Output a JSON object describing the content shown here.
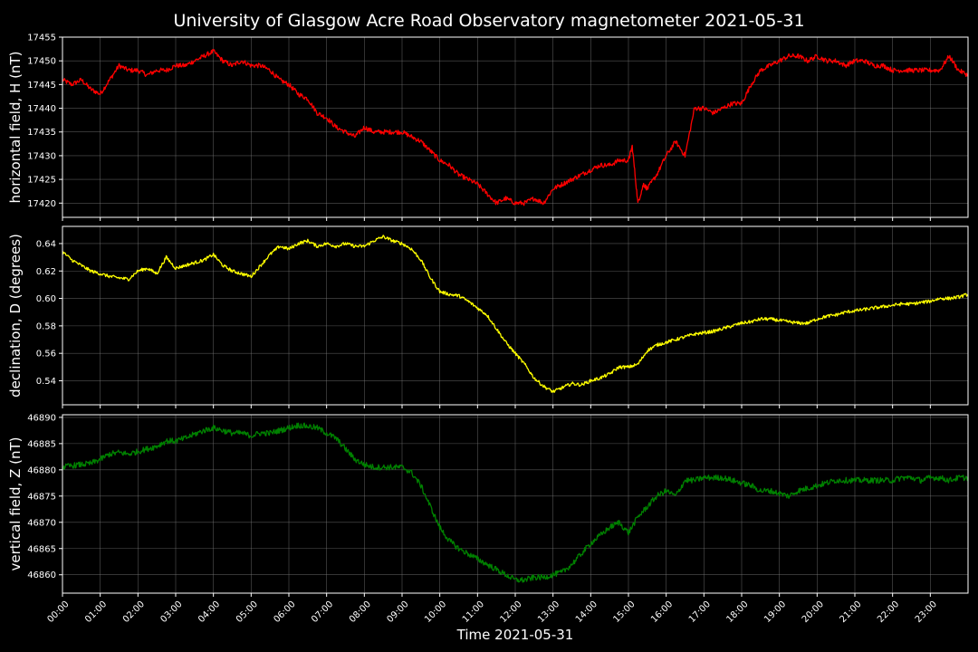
{
  "chart_data": {
    "type": "line",
    "title": "University of Glasgow Acre Road Observatory magnetometer 2021-05-31",
    "xlabel": "Time 2021-05-31",
    "x_tick_labels": [
      "00:00",
      "01:00",
      "02:00",
      "03:00",
      "04:00",
      "05:00",
      "06:00",
      "07:00",
      "08:00",
      "09:00",
      "10:00",
      "11:00",
      "12:00",
      "13:00",
      "14:00",
      "15:00",
      "16:00",
      "17:00",
      "18:00",
      "19:00",
      "20:00",
      "21:00",
      "22:00",
      "23:00"
    ],
    "xlim_hours": [
      0,
      24
    ],
    "grid": true,
    "panels": [
      {
        "id": "H",
        "ylabel": "horizontal field, H (nT)",
        "color": "#ff0000",
        "ylim": [
          17417,
          17455
        ],
        "yticks": [
          17420,
          17425,
          17430,
          17435,
          17440,
          17445,
          17450,
          17455
        ],
        "x_hours": [
          0,
          0.25,
          0.5,
          0.75,
          1,
          1.25,
          1.5,
          1.75,
          2,
          2.25,
          2.5,
          2.75,
          3,
          3.25,
          3.5,
          3.75,
          4,
          4.25,
          4.5,
          4.75,
          5,
          5.25,
          5.5,
          5.75,
          6,
          6.25,
          6.5,
          6.75,
          7,
          7.25,
          7.5,
          7.75,
          8,
          8.25,
          8.5,
          8.75,
          9,
          9.25,
          9.5,
          9.75,
          10,
          10.25,
          10.5,
          10.75,
          11,
          11.25,
          11.5,
          11.75,
          12,
          12.25,
          12.5,
          12.75,
          13,
          13.25,
          13.5,
          13.75,
          14,
          14.25,
          14.5,
          14.75,
          15,
          15.1,
          15.25,
          15.4,
          15.5,
          15.75,
          16,
          16.25,
          16.5,
          16.75,
          17,
          17.25,
          17.5,
          17.75,
          18,
          18.25,
          18.5,
          18.75,
          19,
          19.25,
          19.5,
          19.75,
          20,
          20.25,
          20.5,
          20.75,
          21,
          21.25,
          21.5,
          21.75,
          22,
          22.25,
          22.5,
          22.75,
          23,
          23.25,
          23.5,
          23.75,
          24
        ],
        "values": [
          17446,
          17445,
          17446,
          17444,
          17443,
          17446,
          17449,
          17448,
          17448,
          17447,
          17448,
          17448,
          17449,
          17449,
          17450,
          17451,
          17452,
          17450,
          17449,
          17450,
          17449,
          17449,
          17448,
          17446,
          17445,
          17443,
          17442,
          17439,
          17438,
          17436,
          17435,
          17434,
          17436,
          17435,
          17435,
          17435,
          17435,
          17434,
          17433,
          17431,
          17429,
          17428,
          17426,
          17425,
          17424,
          17422,
          17420,
          17421,
          17420,
          17420,
          17421,
          17420,
          17423,
          17424,
          17425,
          17426,
          17427,
          17428,
          17428,
          17429,
          17429,
          17432,
          17420,
          17424,
          17423,
          17426,
          17430,
          17433,
          17430,
          17440,
          17440,
          17439,
          17440,
          17441,
          17441,
          17445,
          17448,
          17449,
          17450,
          17451,
          17451,
          17450,
          17451,
          17450,
          17450,
          17449,
          17450,
          17450,
          17449,
          17449,
          17448,
          17448,
          17448,
          17448,
          17448,
          17448,
          17451,
          17448,
          17447
        ],
        "noise": 0.5
      },
      {
        "id": "D",
        "ylabel": "declination, D (degrees)",
        "color": "#ffff00",
        "ylim": [
          0.5225,
          0.6525
        ],
        "yticks": [
          0.54,
          0.56,
          0.58,
          0.6,
          0.62,
          0.64
        ],
        "x_hours": [
          0,
          0.25,
          0.5,
          0.75,
          1,
          1.25,
          1.5,
          1.75,
          2,
          2.25,
          2.5,
          2.75,
          3,
          3.25,
          3.5,
          3.75,
          4,
          4.25,
          4.5,
          4.75,
          5,
          5.25,
          5.5,
          5.75,
          6,
          6.25,
          6.5,
          6.75,
          7,
          7.25,
          7.5,
          7.75,
          8,
          8.25,
          8.5,
          8.75,
          9,
          9.25,
          9.5,
          9.75,
          10,
          10.25,
          10.5,
          10.75,
          11,
          11.25,
          11.5,
          11.75,
          12,
          12.25,
          12.5,
          12.75,
          13,
          13.25,
          13.5,
          13.75,
          14,
          14.25,
          14.5,
          14.75,
          15,
          15.25,
          15.5,
          15.75,
          16,
          16.25,
          16.5,
          16.75,
          17,
          17.25,
          17.5,
          17.75,
          18,
          18.25,
          18.5,
          18.75,
          19,
          19.25,
          19.5,
          19.75,
          20,
          20.25,
          20.5,
          20.75,
          21,
          21.25,
          21.5,
          21.75,
          22,
          22.25,
          22.5,
          22.75,
          23,
          23.25,
          23.5,
          23.75,
          24
        ],
        "values": [
          0.634,
          0.628,
          0.624,
          0.62,
          0.618,
          0.616,
          0.615,
          0.614,
          0.62,
          0.622,
          0.618,
          0.63,
          0.622,
          0.624,
          0.626,
          0.628,
          0.632,
          0.624,
          0.62,
          0.618,
          0.616,
          0.624,
          0.632,
          0.638,
          0.636,
          0.64,
          0.642,
          0.638,
          0.64,
          0.638,
          0.64,
          0.638,
          0.638,
          0.642,
          0.645,
          0.642,
          0.64,
          0.636,
          0.628,
          0.615,
          0.605,
          0.603,
          0.602,
          0.598,
          0.593,
          0.588,
          0.578,
          0.568,
          0.56,
          0.552,
          0.542,
          0.536,
          0.532,
          0.535,
          0.538,
          0.537,
          0.54,
          0.542,
          0.545,
          0.55,
          0.55,
          0.552,
          0.562,
          0.566,
          0.568,
          0.57,
          0.572,
          0.574,
          0.575,
          0.576,
          0.578,
          0.58,
          0.582,
          0.583,
          0.585,
          0.585,
          0.584,
          0.583,
          0.582,
          0.582,
          0.585,
          0.587,
          0.588,
          0.59,
          0.591,
          0.592,
          0.593,
          0.594,
          0.595,
          0.596,
          0.596,
          0.597,
          0.598,
          0.6,
          0.6,
          0.601,
          0.603
        ],
        "noise": 0.0012
      },
      {
        "id": "Z",
        "ylabel": "vertical field, Z (nT)",
        "color": "#008000",
        "ylim": [
          46856.5,
          46890.5
        ],
        "yticks": [
          46860,
          46865,
          46870,
          46875,
          46880,
          46885,
          46890
        ],
        "x_hours": [
          0,
          0.25,
          0.5,
          0.75,
          1,
          1.25,
          1.5,
          1.75,
          2,
          2.25,
          2.5,
          2.75,
          3,
          3.25,
          3.5,
          3.75,
          4,
          4.25,
          4.5,
          4.75,
          5,
          5.25,
          5.5,
          5.75,
          6,
          6.25,
          6.5,
          6.75,
          7,
          7.25,
          7.5,
          7.75,
          8,
          8.25,
          8.5,
          8.75,
          9,
          9.25,
          9.5,
          9.75,
          10,
          10.25,
          10.5,
          10.75,
          11,
          11.25,
          11.5,
          11.75,
          12,
          12.25,
          12.5,
          12.75,
          13,
          13.25,
          13.5,
          13.75,
          14,
          14.25,
          14.5,
          14.75,
          15,
          15.25,
          15.5,
          15.75,
          16,
          16.25,
          16.5,
          16.75,
          17,
          17.25,
          17.5,
          17.75,
          18,
          18.25,
          18.5,
          18.75,
          19,
          19.25,
          19.5,
          19.75,
          20,
          20.25,
          20.5,
          20.75,
          21,
          21.25,
          21.5,
          21.75,
          22,
          22.25,
          22.5,
          22.75,
          23,
          23.25,
          23.5,
          23.75,
          24
        ],
        "values": [
          46880.5,
          46880.8,
          46881,
          46881.2,
          46882,
          46883,
          46883.3,
          46883,
          46883.5,
          46884,
          46884.5,
          46885.5,
          46885.5,
          46886,
          46886.8,
          46887.5,
          46888,
          46887.5,
          46887,
          46887,
          46886.5,
          46887,
          46887,
          46887.5,
          46888,
          46888.5,
          46888.3,
          46888,
          46887,
          46886,
          46884,
          46882,
          46881,
          46880.5,
          46880.5,
          46880.5,
          46880.5,
          46879.5,
          46877,
          46873,
          46869,
          46866.5,
          46865,
          46864,
          46863,
          46862,
          46861,
          46860,
          46859,
          46859,
          46859.5,
          46859.5,
          46860,
          46860.5,
          46862,
          46864,
          46866,
          46867.5,
          46869,
          46870,
          46868,
          46871,
          46873,
          46875,
          46876,
          46875,
          46878,
          46878,
          46878.5,
          46878.5,
          46878.5,
          46878,
          46877.5,
          46877,
          46876,
          46876,
          46875.5,
          46875,
          46876,
          46876.5,
          46877,
          46877.5,
          46878,
          46878,
          46878,
          46878,
          46878,
          46878,
          46878,
          46878.5,
          46878.5,
          46878,
          46878.5,
          46878.5,
          46878,
          46878.5,
          46878.5
        ],
        "noise": 0.55
      }
    ]
  }
}
